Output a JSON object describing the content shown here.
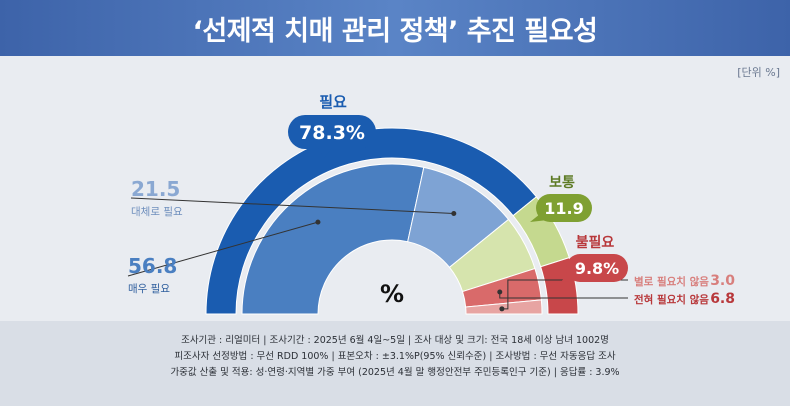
{
  "header": {
    "title": "‘선제적 치매 관리 정책’ 추진 필요성",
    "unit": "[단위 %]"
  },
  "colors": {
    "need_outer": "#1a5cb0",
    "need_very": "#4a7fc1",
    "need_rather": "#7ea3d4",
    "neutral_outer": "#c5d98f",
    "neutral_inner": "#d6e4ad",
    "unneed_outer": "#c8474a",
    "unneed_not_at_all": "#d96a6a",
    "unneed_not_very": "#e7a4a2"
  },
  "chart_data": {
    "type": "pie",
    "center_label": "%",
    "outer_ring": [
      {
        "name": "필요",
        "value": 78.3
      },
      {
        "name": "보통",
        "value": 11.9
      },
      {
        "name": "불필요",
        "value": 9.8
      }
    ],
    "inner_ring": [
      {
        "name": "매우 필요",
        "value": 56.8
      },
      {
        "name": "대체로 필요",
        "value": 21.5
      },
      {
        "name": "보통",
        "value": 11.9
      },
      {
        "name": "전혀 필요치 않음",
        "value": 6.8
      },
      {
        "name": "별로 필요치 않음",
        "value": 3.0
      }
    ],
    "labels": {
      "need": {
        "name": "필요",
        "value": "78.3%"
      },
      "neutral": {
        "name": "보통",
        "value": "11.9"
      },
      "unneed": {
        "name": "불필요",
        "value": "9.8%"
      },
      "very_need": {
        "name": "매우 필요",
        "value": "56.8"
      },
      "rather_need": {
        "name": "대체로 필요",
        "value": "21.5"
      },
      "not_very": {
        "name": "별로 필요치 않음",
        "value": "3.0"
      },
      "not_at_all": {
        "name": "전혀 필요치 않음",
        "value": "6.8"
      }
    }
  },
  "footer": {
    "line1": "조사기관 : 리얼미터  |  조사기간 : 2025년 6월 4일~5일  | 조사 대상 및 크기: 전국 18세 이상 남녀 1002명",
    "line2": "피조사자 선정방법 : 무선 RDD 100% | 표본오차 : ±3.1%P(95% 신뢰수준) | 조사방법 : 무선 자동응답 조사",
    "line3": "가중값 산출 및 적용: 성·연령·지역별 가중 부여 (2025년 4월 말 행정안전부 주민등록인구 기준) | 응답률 : 3.9%"
  }
}
